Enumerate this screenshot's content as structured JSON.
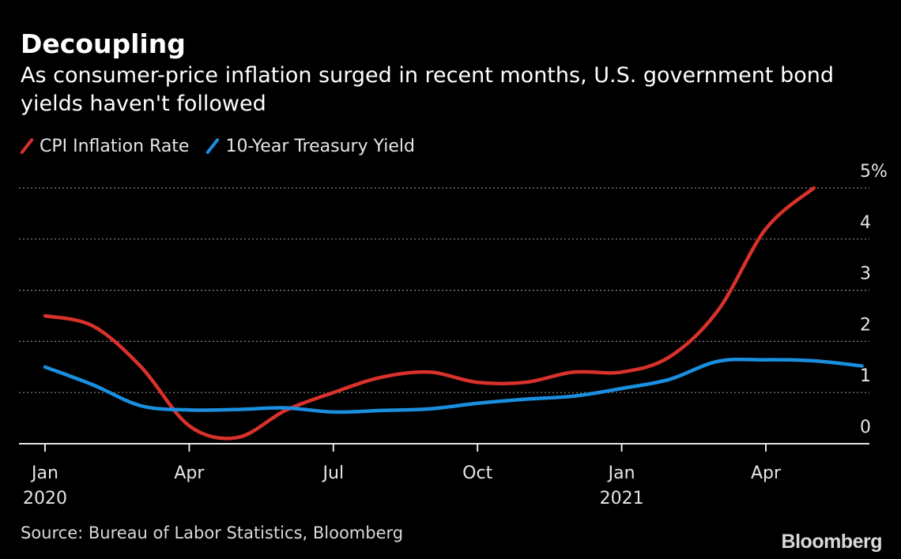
{
  "title": "Decoupling",
  "subtitle": "As consumer-price inflation surged in recent months, U.S. government bond yields haven't followed",
  "source": "Source: Bureau of Labor Statistics, Bloomberg",
  "logo": "Bloomberg",
  "chart_data": {
    "type": "line",
    "title": "Decoupling",
    "x_ticks": [
      {
        "date": "2020-01",
        "label": "Jan",
        "sublabel": "2020"
      },
      {
        "date": "2020-04",
        "label": "Apr",
        "sublabel": ""
      },
      {
        "date": "2020-07",
        "label": "Jul",
        "sublabel": ""
      },
      {
        "date": "2020-10",
        "label": "Oct",
        "sublabel": ""
      },
      {
        "date": "2021-01",
        "label": "Jan",
        "sublabel": "2021"
      },
      {
        "date": "2021-04",
        "label": "Apr",
        "sublabel": ""
      }
    ],
    "y_ticks": [
      {
        "value": 0,
        "label": "0"
      },
      {
        "value": 1,
        "label": "1"
      },
      {
        "value": 2,
        "label": "2"
      },
      {
        "value": 3,
        "label": "3"
      },
      {
        "value": 4,
        "label": "4"
      },
      {
        "value": 5,
        "label": "5%"
      }
    ],
    "ylim": [
      0,
      5
    ],
    "xlim": [
      "2020-01",
      "2021-06"
    ],
    "grid": "horizontal dotted",
    "legend": "top-left",
    "series": [
      {
        "name": "CPI Inflation Rate",
        "color": "#d9312b",
        "x": [
          "2020-01",
          "2020-02",
          "2020-03",
          "2020-04",
          "2020-05",
          "2020-06",
          "2020-07",
          "2020-08",
          "2020-09",
          "2020-10",
          "2020-11",
          "2020-12",
          "2021-01",
          "2021-02",
          "2021-03",
          "2021-04",
          "2021-05"
        ],
        "values": [
          2.5,
          2.3,
          1.5,
          0.35,
          0.12,
          0.65,
          1.0,
          1.3,
          1.4,
          1.2,
          1.2,
          1.4,
          1.4,
          1.7,
          2.6,
          4.2,
          5.0
        ]
      },
      {
        "name": "10-Year Treasury Yield",
        "color": "#1a8fe0",
        "x": [
          "2020-01",
          "2020-02",
          "2020-03",
          "2020-04",
          "2020-05",
          "2020-06",
          "2020-07",
          "2020-08",
          "2020-09",
          "2020-10",
          "2020-11",
          "2020-12",
          "2021-01",
          "2021-02",
          "2021-03",
          "2021-04",
          "2021-05",
          "2021-06"
        ],
        "values": [
          1.5,
          1.15,
          0.74,
          0.66,
          0.67,
          0.7,
          0.62,
          0.65,
          0.68,
          0.79,
          0.87,
          0.93,
          1.08,
          1.26,
          1.61,
          1.64,
          1.62,
          1.52
        ]
      }
    ]
  }
}
